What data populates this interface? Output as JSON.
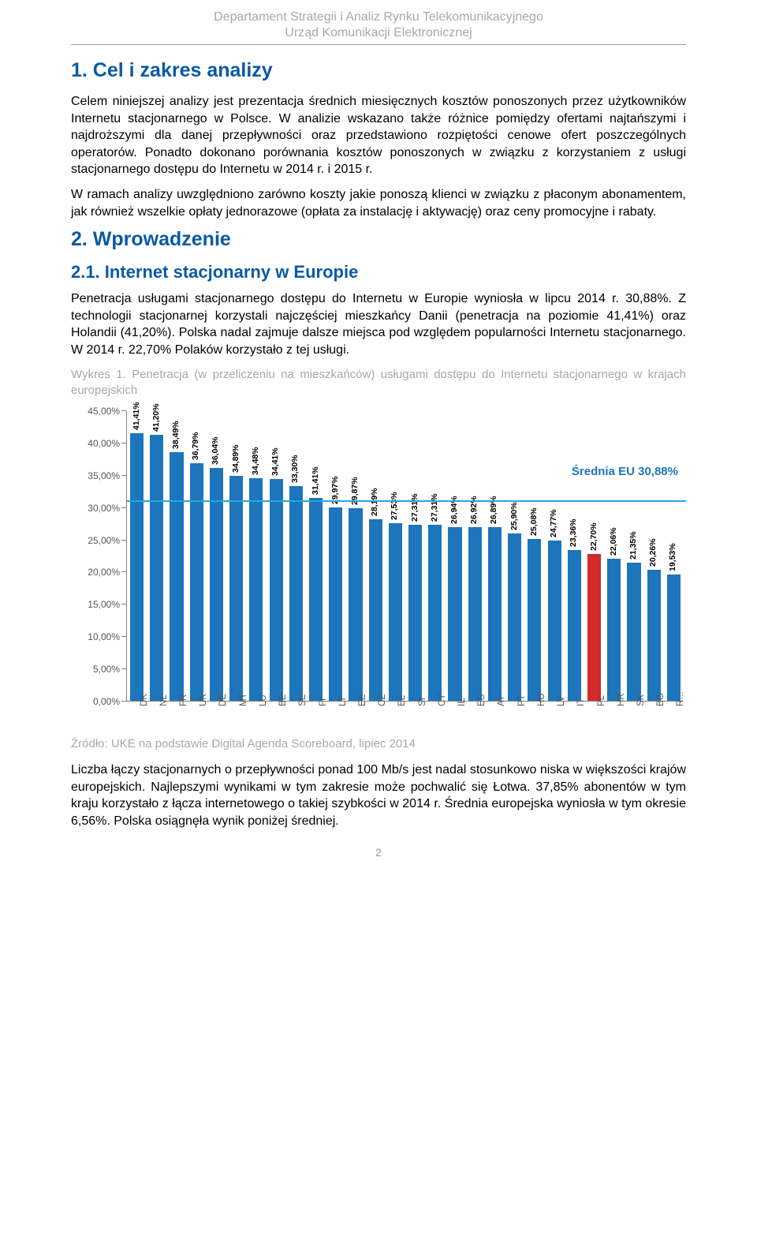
{
  "header": {
    "line1": "Departament Strategii i Analiz Rynku Telekomunikacyjnego",
    "line2": "Urząd Komunikacji Elektronicznej"
  },
  "section1": {
    "title": "1. Cel i zakres analizy",
    "p1": "Celem niniejszej analizy jest prezentacja średnich miesięcznych kosztów ponoszonych przez użytkowników Internetu stacjonarnego w Polsce. W analizie wskazano także różnice pomiędzy ofertami najtańszymi i najdroższymi dla danej przepływności oraz przedstawiono rozpiętości cenowe ofert poszczególnych operatorów. Ponadto dokonano porównania kosztów ponoszonych w związku z korzystaniem z usługi stacjonarnego dostępu do Internetu w 2014 r. i 2015 r.",
    "p2": "W ramach analizy uwzględniono zarówno koszty jakie ponoszą klienci w związku z płaconym abonamentem, jak również wszelkie opłaty jednorazowe (opłata za instalację i aktywację) oraz ceny promocyjne i rabaty."
  },
  "section2": {
    "title": "2. Wprowadzenie",
    "sub_title": "2.1.   Internet stacjonarny w Europie",
    "p1": "Penetracja usługami stacjonarnego dostępu do Internetu w Europie wyniosła w lipcu 2014 r. 30,88%. Z technologii stacjonarnej korzystali najczęściej mieszkańcy Danii (penetracja na poziomie 41,41%) oraz Holandii (41,20%). Polska nadal zajmuje dalsze miejsca pod względem popularności Internetu stacjonarnego. W 2014 r. 22,70% Polaków korzystało z tej usługi."
  },
  "chart": {
    "caption": "Wykres 1. Penetracja (w przeliczeniu na mieszkańców) usługami dostępu do Internetu stacjonarnego w krajach europejskich",
    "source": "Źródło: UKE na podstawie Digital Agenda Scoreboard, lipiec 2014",
    "type": "bar",
    "y": {
      "min": 0,
      "max": 45,
      "step": 5,
      "tick_labels": [
        "0,00%",
        "5,00%",
        "10,00%",
        "15,00%",
        "20,00%",
        "25,00%",
        "30,00%",
        "35,00%",
        "40,00%",
        "45,00%"
      ]
    },
    "bar_color_default": "#1d75bc",
    "bar_width_ratio": 0.68,
    "axis_color": "#808080",
    "avg": {
      "value": 30.88,
      "label": "Średnia EU 30,88%",
      "line_color": "#2ca3df",
      "text_color": "#1d76bd"
    },
    "bars": [
      {
        "code": "DK",
        "label": "41,41%",
        "value": 41.41
      },
      {
        "code": "NL",
        "label": "41,20%",
        "value": 41.2
      },
      {
        "code": "FR",
        "label": "38,49%",
        "value": 38.49
      },
      {
        "code": "UK",
        "label": "36,79%",
        "value": 36.79
      },
      {
        "code": "DE",
        "label": "36,04%",
        "value": 36.04
      },
      {
        "code": "MT",
        "label": "34,89%",
        "value": 34.89
      },
      {
        "code": "LU",
        "label": "34,48%",
        "value": 34.48
      },
      {
        "code": "BE",
        "label": "34,41%",
        "value": 34.41
      },
      {
        "code": "SE",
        "label": "33,30%",
        "value": 33.3
      },
      {
        "code": "FI",
        "label": "31,41%",
        "value": 31.41
      },
      {
        "code": "LT",
        "label": "29,97%",
        "value": 29.97
      },
      {
        "code": "EE",
        "label": "29,87%",
        "value": 29.87
      },
      {
        "code": "CZ",
        "label": "28,19%",
        "value": 28.19
      },
      {
        "code": "EL",
        "label": "27,53%",
        "value": 27.53
      },
      {
        "code": "SI",
        "label": "27,31%",
        "value": 27.31
      },
      {
        "code": "CY",
        "label": "27,31%",
        "value": 27.31
      },
      {
        "code": "IE",
        "label": "26,94%",
        "value": 26.94
      },
      {
        "code": "ES",
        "label": "26,92%",
        "value": 26.92
      },
      {
        "code": "AT",
        "label": "26,89%",
        "value": 26.89
      },
      {
        "code": "PT",
        "label": "25,90%",
        "value": 25.9
      },
      {
        "code": "HU",
        "label": "25,08%",
        "value": 25.08
      },
      {
        "code": "LV",
        "label": "24,77%",
        "value": 24.77
      },
      {
        "code": "IT",
        "label": "23,36%",
        "value": 23.36
      },
      {
        "code": "PL",
        "label": "22,70%",
        "value": 22.7,
        "color": "#d52a2a"
      },
      {
        "code": "HR",
        "label": "22,06%",
        "value": 22.06
      },
      {
        "code": "SK",
        "label": "21,35%",
        "value": 21.35
      },
      {
        "code": "BG",
        "label": "20,26%",
        "value": 20.26
      },
      {
        "code": "R…",
        "label": "19,53%",
        "value": 19.53
      }
    ]
  },
  "closing": {
    "p1": "Liczba łączy stacjonarnych o przepływności ponad 100 Mb/s jest nadal stosunkowo niska w większości krajów europejskich. Najlepszymi wynikami w tym zakresie może pochwalić się Łotwa. 37,85% abonentów w tym kraju korzystało z łącza internetowego o takiej szybkości w 2014 r. Średnia europejska wyniosła w tym okresie 6,56%. Polska osiągnęła wynik poniżej średniej."
  },
  "page_number": "2"
}
